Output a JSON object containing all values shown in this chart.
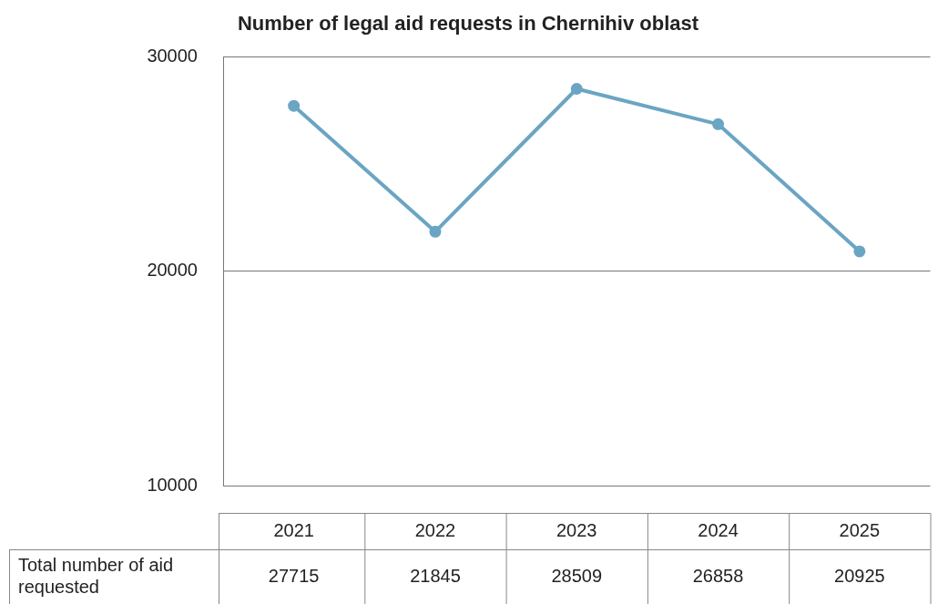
{
  "chart_data": {
    "type": "line",
    "title": "Number of legal aid requests in Chernihiv oblast",
    "categories": [
      "2021",
      "2022",
      "2023",
      "2024",
      "2025"
    ],
    "series": [
      {
        "name": "Total number of aid requested",
        "color": "#6aa5c3",
        "values": [
          27715,
          21845,
          28509,
          26858,
          20925
        ]
      }
    ],
    "ylim": [
      10000,
      30000
    ],
    "yticks": [
      10000,
      20000,
      30000
    ],
    "grid": "y",
    "marker": "circle",
    "line_style": "solid",
    "data_labels": true
  }
}
